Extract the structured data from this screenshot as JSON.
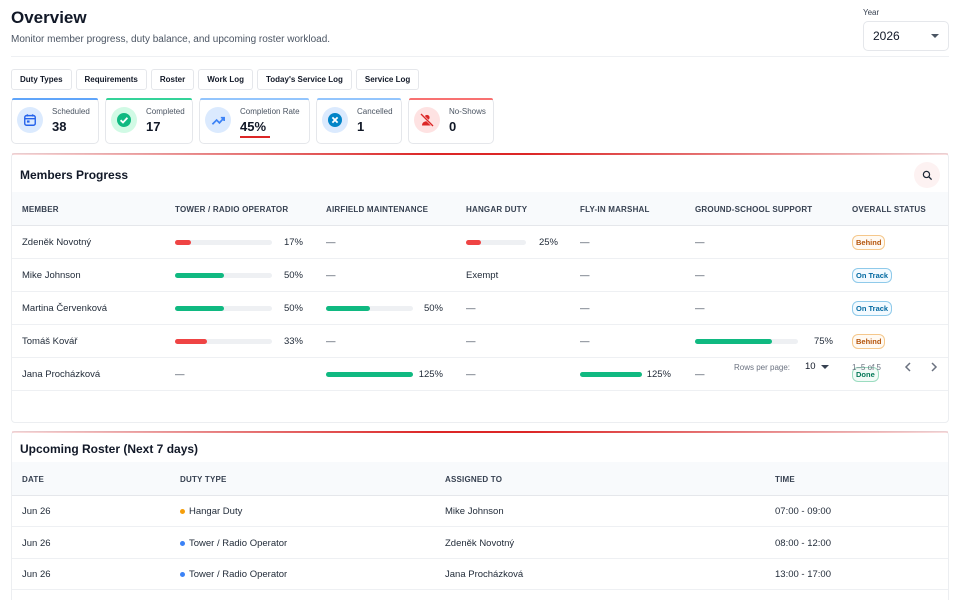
{
  "header": {
    "title": "Overview",
    "subtitle": "Monitor member progress, duty balance, and upcoming roster workload."
  },
  "year": {
    "label": "Year",
    "value": "2026"
  },
  "tabs": [
    {
      "label": "Duty Types"
    },
    {
      "label": "Requirements"
    },
    {
      "label": "Roster"
    },
    {
      "label": "Work Log"
    },
    {
      "label": "Today's Service Log"
    },
    {
      "label": "Service Log"
    }
  ],
  "stats": [
    {
      "label": "Scheduled",
      "value": "38",
      "icon": "calendar-icon",
      "accent": "#60a5fa",
      "iconBg": "#dbeafe",
      "iconColor": "#2563eb"
    },
    {
      "label": "Completed",
      "value": "17",
      "icon": "check-circle-icon",
      "accent": "#34d399",
      "iconBg": "#d1fae5",
      "iconColor": "#10b981"
    },
    {
      "label": "Completion Rate",
      "value": "45%",
      "icon": "trending-up-icon",
      "accent": "#93c5fd",
      "iconBg": "#dbeafe",
      "iconColor": "#3b82f6",
      "progress_percent": 45
    },
    {
      "label": "Cancelled",
      "value": "1",
      "icon": "cancel-circle-icon",
      "accent": "#93c5fd",
      "iconBg": "#dbeafe",
      "iconColor": "#0284c7"
    },
    {
      "label": "No-Shows",
      "value": "0",
      "icon": "person-off-icon",
      "accent": "#f87171",
      "iconBg": "#fee2e2",
      "iconColor": "#dc2626"
    }
  ],
  "progress": {
    "title": "Members Progress",
    "columns": [
      "MEMBER",
      "TOWER / RADIO OPERATOR",
      "AIRFIELD MAINTENANCE",
      "HANGAR DUTY",
      "FLY-IN MARSHAL",
      "GROUND-SCHOOL SUPPORT",
      "OVERALL STATUS"
    ],
    "rows": [
      {
        "name": "Zdeněk Novotný",
        "cells": [
          {
            "type": "bar",
            "label": "17%",
            "percent": 17,
            "color": "#ef4444"
          },
          {
            "type": "text",
            "label": "—"
          },
          {
            "type": "bar",
            "label": "25%",
            "percent": 25,
            "color": "#ef4444"
          },
          {
            "type": "text",
            "label": "—"
          },
          {
            "type": "text",
            "label": "—"
          }
        ],
        "status": "Behind",
        "status_kind": "behind"
      },
      {
        "name": "Mike Johnson",
        "cells": [
          {
            "type": "bar",
            "label": "50%",
            "percent": 50,
            "color": "#10b981"
          },
          {
            "type": "text",
            "label": "—"
          },
          {
            "type": "text",
            "label": "Exempt"
          },
          {
            "type": "text",
            "label": "—"
          },
          {
            "type": "text",
            "label": "—"
          }
        ],
        "status": "On Track",
        "status_kind": "ontrack"
      },
      {
        "name": "Martina Červenková",
        "cells": [
          {
            "type": "bar",
            "label": "50%",
            "percent": 50,
            "color": "#10b981"
          },
          {
            "type": "bar",
            "label": "50%",
            "percent": 50,
            "color": "#10b981"
          },
          {
            "type": "text",
            "label": "—"
          },
          {
            "type": "text",
            "label": "—"
          },
          {
            "type": "text",
            "label": "—"
          }
        ],
        "status": "On Track",
        "status_kind": "ontrack"
      },
      {
        "name": "Tomáš Kovář",
        "cells": [
          {
            "type": "bar",
            "label": "33%",
            "percent": 33,
            "color": "#ef4444"
          },
          {
            "type": "text",
            "label": "—"
          },
          {
            "type": "text",
            "label": "—"
          },
          {
            "type": "text",
            "label": "—"
          },
          {
            "type": "bar",
            "label": "75%",
            "percent": 75,
            "color": "#10b981"
          }
        ],
        "status": "Behind",
        "status_kind": "behind"
      },
      {
        "name": "Jana Procházková",
        "cells": [
          {
            "type": "text",
            "label": "—"
          },
          {
            "type": "bar",
            "label": "125%",
            "percent": 125,
            "color": "#10b981"
          },
          {
            "type": "text",
            "label": "—"
          },
          {
            "type": "bar",
            "label": "125%",
            "percent": 125,
            "color": "#10b981"
          },
          {
            "type": "text",
            "label": "—"
          }
        ],
        "status": "Done",
        "status_kind": "done"
      }
    ],
    "pagination": {
      "rows_label": "Rows per page:",
      "rows_value": "10",
      "range": "1–5 of 5"
    }
  },
  "roster": {
    "title": "Upcoming Roster (Next 7 days)",
    "columns": [
      "DATE",
      "DUTY TYPE",
      "ASSIGNED TO",
      "TIME"
    ],
    "rows": [
      {
        "date": "Jun 26",
        "duty": "Hangar Duty",
        "dot": "#f59e0b",
        "assigned": "Mike Johnson",
        "time": "07:00 - 09:00"
      },
      {
        "date": "Jun 26",
        "duty": "Tower / Radio Operator",
        "dot": "#3b82f6",
        "assigned": "Zdeněk Novotný",
        "time": "08:00 - 12:00"
      },
      {
        "date": "Jun 26",
        "duty": "Tower / Radio Operator",
        "dot": "#3b82f6",
        "assigned": "Jana Procházková",
        "time": "13:00 - 17:00"
      }
    ]
  }
}
